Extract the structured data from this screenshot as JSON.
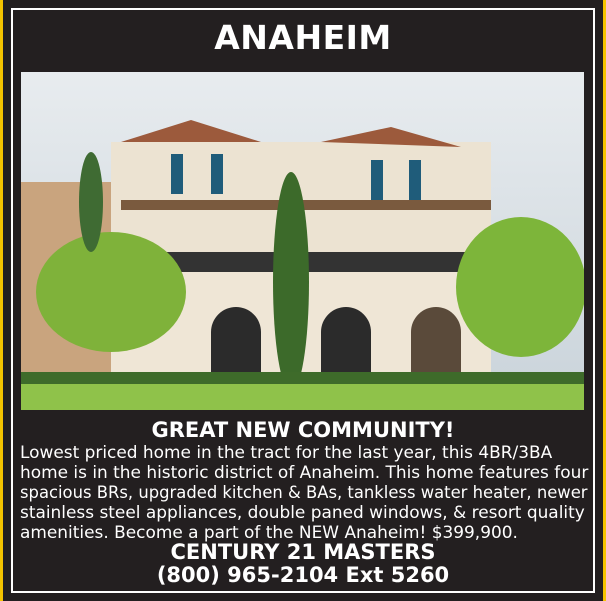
{
  "title": "ANAHEIM",
  "photo": {
    "alt": "house-photo"
  },
  "headline": "GREAT NEW COMMUNITY!",
  "body_lines": [
    "Lowest priced home in the tract for the last year, this 4BR/3BA",
    "home is in the historic district of Anaheim. This home features four",
    "spacious BRs, upgraded kitchen & BAs, tankless water heater, newer",
    "stainless steel appliances, double paned windows, & resort quality",
    "amenities. Become a part of the NEW Anaheim! $399,900."
  ],
  "agent": {
    "name": "CENTURY 21 MASTERS",
    "phone": "(800) 965-2104 Ext 5260"
  },
  "colors": {
    "background": "#231f20",
    "text": "#ffffff",
    "edge": "#f5c400"
  }
}
